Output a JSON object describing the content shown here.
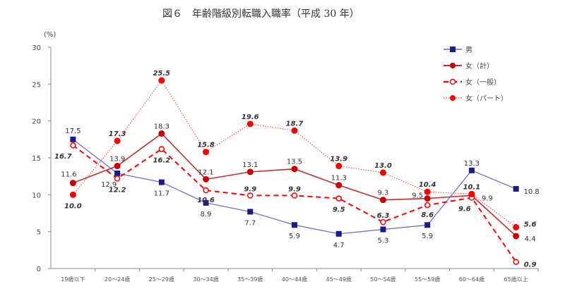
{
  "chart_data": {
    "type": "line",
    "title": "図６　年齢階級別転職入職率（平成 30 年）",
    "ylabel": "(%)",
    "ylim": [
      0,
      30
    ],
    "yticks": [
      0,
      5,
      10,
      15,
      20,
      25,
      30
    ],
    "grid": false,
    "legend_position": "top-right",
    "categories": [
      "19歳以下",
      "20～24歳",
      "25～29歳",
      "30～34歳",
      "35～39歳",
      "40～44歳",
      "45～49歳",
      "50～54歳",
      "55～59歳",
      "60～64歳",
      "65歳以上"
    ],
    "series": [
      {
        "name": "男",
        "color": "#1a1a8c",
        "line": "#6666cc",
        "style": "solid",
        "marker": "square",
        "values": [
          17.5,
          12.9,
          11.7,
          8.9,
          7.7,
          5.9,
          4.7,
          5.3,
          5.9,
          13.3,
          10.8
        ]
      },
      {
        "name": "女（計）",
        "color": "#cc0000",
        "line": "#c03030",
        "style": "solid",
        "marker": "circle",
        "values": [
          11.6,
          13.9,
          18.3,
          12.1,
          13.1,
          13.5,
          11.3,
          9.3,
          9.5,
          9.9,
          4.4
        ]
      },
      {
        "name": "女（一般）",
        "color": "#ff0000",
        "line": "#ff0000",
        "style": "dashed",
        "marker": "open-circle",
        "values": [
          16.7,
          12.2,
          16.2,
          10.6,
          9.9,
          9.9,
          9.5,
          6.3,
          8.6,
          9.6,
          0.9
        ]
      },
      {
        "name": "女（パート）",
        "color": "#ff0000",
        "line": "#ff3333",
        "style": "dotted",
        "marker": "circle",
        "values": [
          10.0,
          17.3,
          25.5,
          15.8,
          19.6,
          18.7,
          13.9,
          13.0,
          10.4,
          10.1,
          5.6
        ]
      }
    ]
  }
}
